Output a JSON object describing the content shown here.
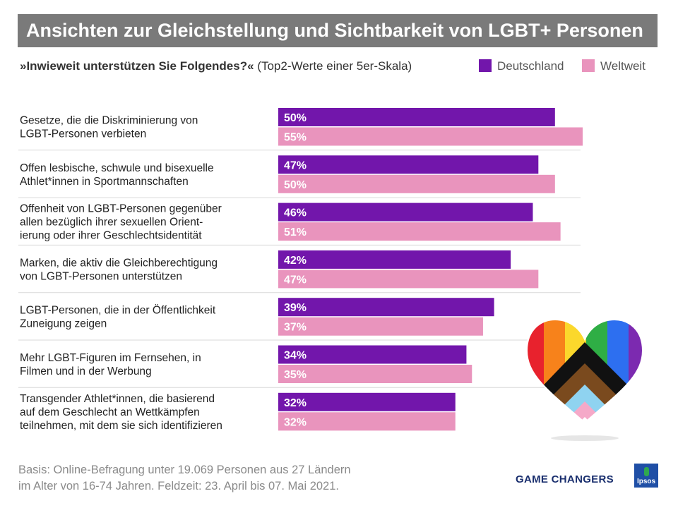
{
  "title": "Ansichten zur Gleichstellung und Sichtbarkeit von LGBT+ Personen",
  "subtitle": {
    "question": "»Inwieweit unterstützen Sie Folgendes?«",
    "note": "(Top2-Werte  einer 5er-Skala)"
  },
  "legend": [
    {
      "name": "Deutschland",
      "color": "#7216ab"
    },
    {
      "name": "Weltweit",
      "color": "#e994bd"
    }
  ],
  "chart_data": {
    "type": "bar",
    "orientation": "horizontal",
    "categories": [
      [
        "Gesetze, die die Diskriminierung von",
        "LGBT-Personen verbieten"
      ],
      [
        "Offen lesbische, schwule und bisexuelle",
        "Athlet*innen in Sportmannschaften"
      ],
      [
        "Offenheit von LGBT-Personen gegenüber",
        "allen bezüglich ihrer sexuellen Orient-",
        "ierung oder ihrer Geschlechtsidentität"
      ],
      [
        "Marken, die aktiv die Gleichberechtigung",
        "von LGBT-Personen unterstützen"
      ],
      [
        "LGBT-Personen, die in der Öffentlichkeit",
        "Zuneigung zeigen"
      ],
      [
        "Mehr LGBT-Figuren im Fernsehen, in",
        "Filmen und in der Werbung"
      ],
      [
        "Transgender Athlet*innen, die basierend",
        "auf dem Geschlecht an Wettkämpfen",
        "teilnehmen, mit dem sie sich identifizieren"
      ]
    ],
    "series": [
      {
        "name": "Deutschland",
        "color": "#7216ab",
        "values": [
          50,
          47,
          46,
          42,
          39,
          34,
          32
        ],
        "labels": [
          "50%",
          "47%",
          "46%",
          "42%",
          "39%",
          "34%",
          "32%"
        ]
      },
      {
        "name": "Weltweit",
        "color": "#e994bd",
        "values": [
          55,
          50,
          51,
          47,
          37,
          35,
          32
        ],
        "labels": [
          "55%",
          "50%",
          "51%",
          "47%",
          "37%",
          "35%",
          "32%"
        ]
      }
    ],
    "xlim": [
      0,
      55
    ],
    "unit": "%"
  },
  "footer": {
    "line1": "Basis: Online-Befragung  unter 19.069 Personen aus 27 Ländern",
    "line2": "im Alter von 16-74 Jahren.  Feldzeit: 23. April bis 07. Mai 2021."
  },
  "brand": "GAME CHANGERS",
  "logo_text": "Ipsos"
}
